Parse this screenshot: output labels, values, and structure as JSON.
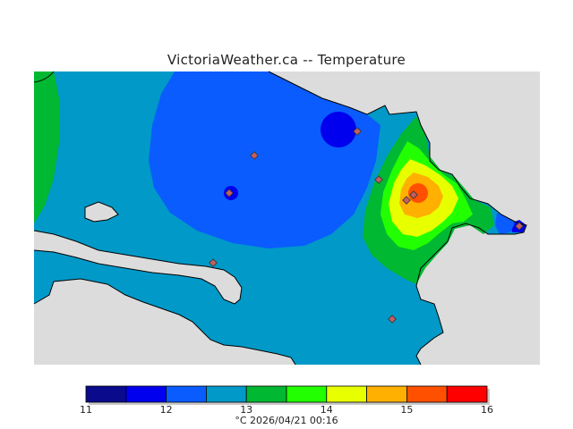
{
  "title": "VictoriaWeather.ca -- Temperature",
  "colorbar": {
    "ticks": [
      "11",
      "12",
      "13",
      "14",
      "15",
      "16"
    ],
    "unit": "°C",
    "timestamp": "2026/04/21 00:16",
    "colors": [
      "#0a0a8c",
      "#0000ee",
      "#0a5cff",
      "#0099c8",
      "#00b832",
      "#22ff00",
      "#e8ff00",
      "#ffb000",
      "#ff5000",
      "#ff0000"
    ]
  },
  "colors": {
    "background": "#dcdcdc",
    "water_ocean": "#dcdcdc",
    "coastline": "#000000",
    "station_marker": "#c06060"
  }
}
